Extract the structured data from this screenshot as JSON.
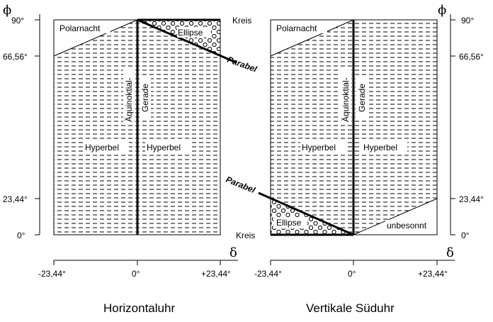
{
  "axes": {
    "phi_symbol": "ϕ",
    "delta_symbol": "δ",
    "phi_ticks": [
      "90°",
      "66,56°",
      "23,44°",
      "0°"
    ],
    "phi_values": [
      90,
      66.56,
      23.44,
      0
    ],
    "delta_ticks": [
      "-23,44°",
      "0°",
      "+23,44°"
    ],
    "delta_values": [
      -23.44,
      0,
      23.44
    ]
  },
  "left_panel": {
    "caption": "Horizontaluhr",
    "polarnacht": "Polarnacht",
    "ellipse": "Ellipse",
    "kreis": "Kreis",
    "parabel": "Parabel",
    "aequinoktial": "Äquinoktial-",
    "gerade": "Gerade",
    "hyperbel_left": "Hyperbel",
    "hyperbel_right": "Hyperbel"
  },
  "right_panel": {
    "caption": "Vertikale Süduhr",
    "polarnacht": "Polarnacht",
    "ellipse": "Ellipse",
    "kreis": "Kreis",
    "parabel": "Parabel",
    "aequinoktial": "Äquinoktial-",
    "gerade": "Gerade",
    "hyperbel_left": "Hyperbel",
    "hyperbel_right": "Hyperbel",
    "unbesonnt": "unbesonnt"
  }
}
